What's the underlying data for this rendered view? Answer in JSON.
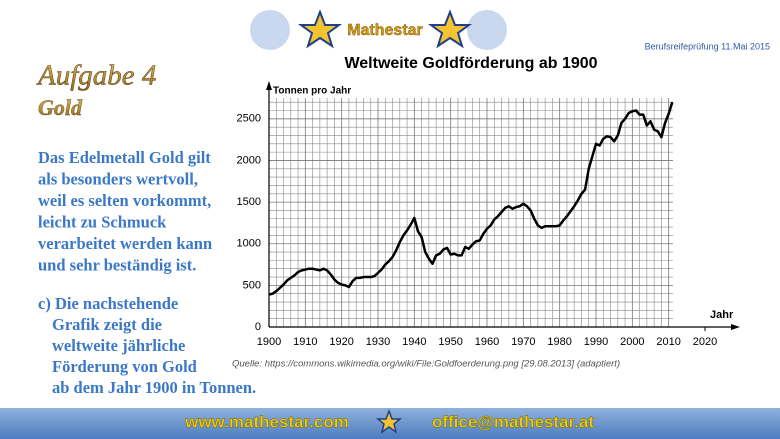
{
  "header": {
    "logo": "Mathestar",
    "exam": "Berufsreifeprüfung 11.Mai 2015"
  },
  "task": {
    "title": "Aufgabe 4",
    "subtitle": "Gold",
    "intro": [
      "Das Edelmetall Gold gilt",
      "als besonders wertvoll,",
      "weil es selten vorkommt,",
      "leicht zu Schmuck",
      "verarbeitet werden kann",
      "und sehr beständig ist."
    ],
    "question": [
      "c) Die nachstehende",
      "Grafik zeigt die",
      "weltweite jährliche",
      "Förderung von Gold",
      "ab dem Jahr 1900 in Tonnen."
    ]
  },
  "chart_data": {
    "type": "line",
    "title": "Weltweite Goldförderung ab 1900",
    "ylabel": "Tonnen pro Jahr",
    "xlabel": "Jahr",
    "source": "Quelle: https://commons.wikimedia.org/wiki/File:Goldfoerderung.png [29.08.2013] (adaptiert)",
    "x": [
      1900,
      1901,
      1902,
      1903,
      1904,
      1905,
      1906,
      1907,
      1908,
      1909,
      1910,
      1911,
      1912,
      1913,
      1914,
      1915,
      1916,
      1917,
      1918,
      1919,
      1920,
      1921,
      1922,
      1923,
      1924,
      1925,
      1926,
      1927,
      1928,
      1929,
      1930,
      1931,
      1932,
      1933,
      1934,
      1935,
      1936,
      1937,
      1938,
      1939,
      1940,
      1941,
      1942,
      1943,
      1944,
      1945,
      1946,
      1947,
      1948,
      1949,
      1950,
      1951,
      1952,
      1953,
      1954,
      1955,
      1956,
      1957,
      1958,
      1959,
      1960,
      1961,
      1962,
      1963,
      1964,
      1965,
      1966,
      1967,
      1968,
      1969,
      1970,
      1971,
      1972,
      1973,
      1974,
      1975,
      1976,
      1977,
      1978,
      1979,
      1980,
      1981,
      1982,
      1983,
      1984,
      1985,
      1986,
      1987,
      1988,
      1989,
      1990,
      1991,
      1992,
      1993,
      1994,
      1995,
      1996,
      1997,
      1998,
      1999,
      2000,
      2001,
      2002,
      2003,
      2004,
      2005,
      2006,
      2007,
      2008,
      2009,
      2010,
      2011
    ],
    "series": [
      {
        "name": "Goldförderung",
        "color": "#000000",
        "values": [
          390,
          400,
          430,
          470,
          510,
          560,
          590,
          620,
          660,
          680,
          690,
          700,
          700,
          690,
          680,
          700,
          680,
          630,
          570,
          530,
          510,
          500,
          480,
          550,
          590,
          590,
          600,
          600,
          600,
          610,
          650,
          690,
          750,
          790,
          840,
          920,
          1020,
          1100,
          1160,
          1230,
          1310,
          1150,
          1080,
          900,
          820,
          760,
          860,
          880,
          930,
          950,
          870,
          880,
          860,
          860,
          960,
          940,
          990,
          1030,
          1040,
          1120,
          1180,
          1220,
          1290,
          1330,
          1380,
          1430,
          1450,
          1420,
          1440,
          1450,
          1480,
          1450,
          1400,
          1300,
          1220,
          1190,
          1210,
          1210,
          1210,
          1210,
          1220,
          1280,
          1330,
          1390,
          1450,
          1520,
          1600,
          1650,
          1900,
          2050,
          2200,
          2180,
          2260,
          2290,
          2280,
          2230,
          2300,
          2450,
          2500,
          2570,
          2590,
          2600,
          2550,
          2550,
          2420,
          2470,
          2370,
          2350,
          2280,
          2450,
          2560,
          2700
        ]
      }
    ],
    "xlim": [
      1900,
      2020
    ],
    "ylim": [
      0,
      2750
    ],
    "xticks": [
      1900,
      1910,
      1920,
      1930,
      1940,
      1950,
      1960,
      1970,
      1980,
      1990,
      2000,
      2010,
      2020
    ],
    "yticks": [
      0,
      500,
      1000,
      1500,
      2000,
      2500
    ],
    "grid": true
  },
  "footer": {
    "web": "www.mathestar.com",
    "mail": "office@mathestar.at"
  }
}
